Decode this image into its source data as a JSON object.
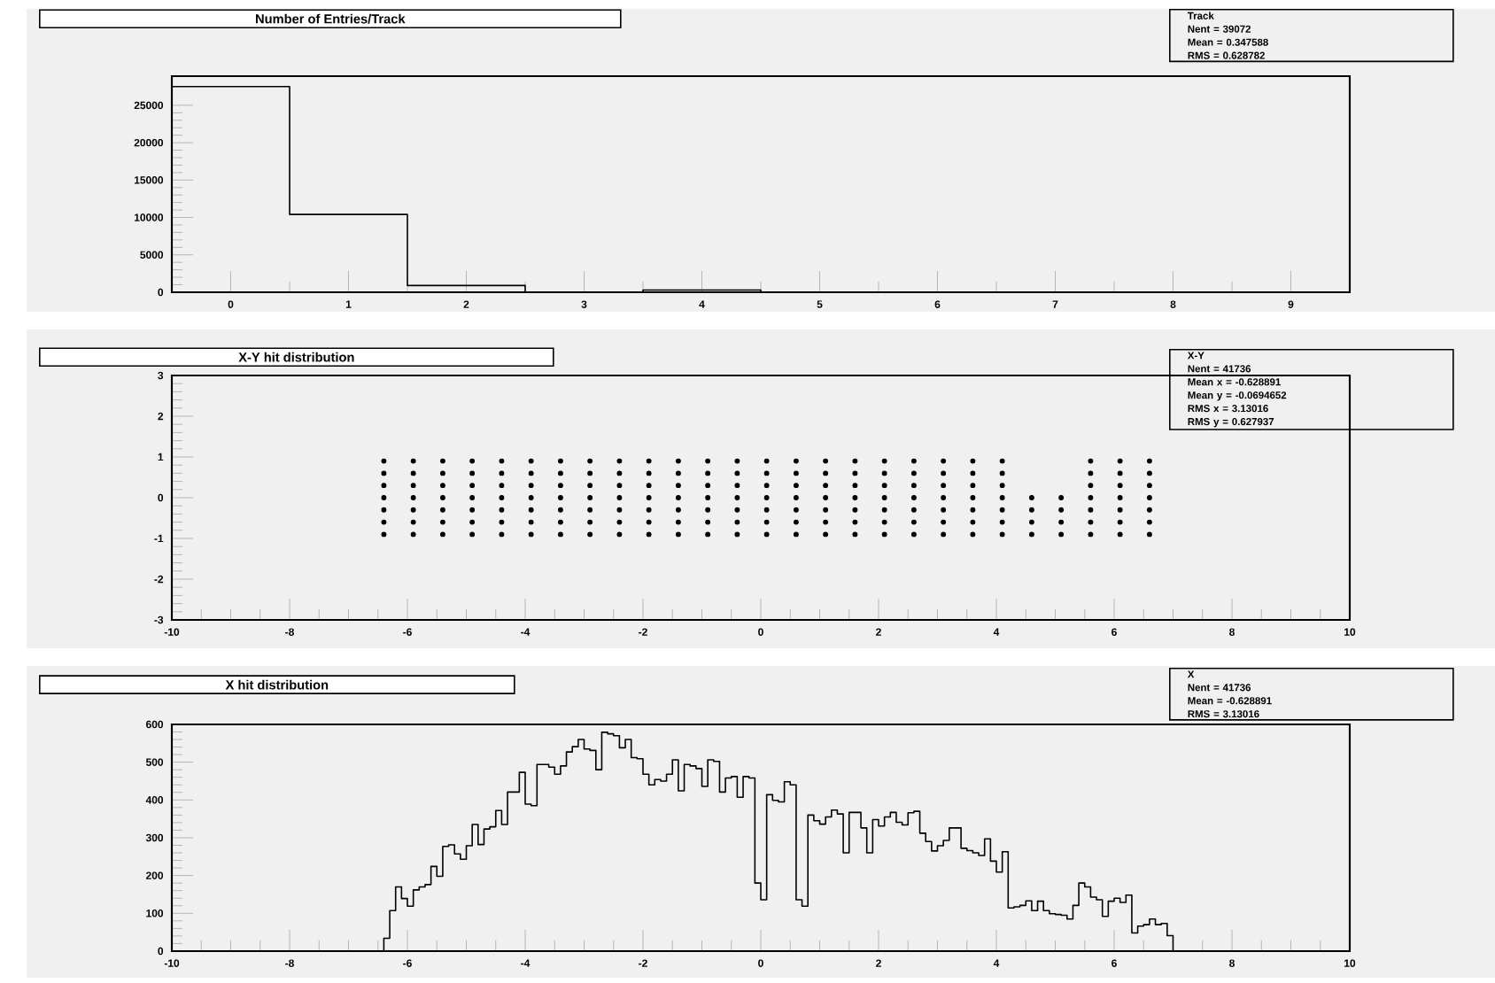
{
  "chart_data": [
    {
      "type": "histogram",
      "title": "Number of Entries/Track",
      "color": "#000000",
      "bins": [
        -0.5,
        0.5,
        1.5,
        2.5,
        3.5,
        4.5
      ],
      "values": [
        27500,
        10400,
        900,
        0,
        300
      ],
      "xlim": [
        -0.5,
        9.5
      ],
      "ylim": [
        0,
        28900
      ],
      "xticks": [
        0,
        1,
        2,
        3,
        4,
        5,
        6,
        7,
        8,
        9
      ],
      "yticks": [
        0,
        5000,
        10000,
        15000,
        20000,
        25000
      ],
      "annotations": [
        "Track",
        "Nent = 39072",
        "Mean  = 0.347588",
        "RMS   = 0.628782"
      ]
    },
    {
      "type": "scatter",
      "title": "X-Y hit distribution",
      "color": "#000000",
      "marker": "circle",
      "x": [
        -6.4,
        -6.4,
        -6.4,
        -6.4,
        -6.4,
        -6.4,
        -6.4,
        -5.9,
        -5.9,
        -5.9,
        -5.9,
        -5.9,
        -5.9,
        -5.9,
        -5.4,
        -5.4,
        -5.4,
        -5.4,
        -5.4,
        -5.4,
        -5.4,
        -4.9,
        -4.9,
        -4.9,
        -4.9,
        -4.9,
        -4.9,
        -4.9,
        -4.4,
        -4.4,
        -4.4,
        -4.4,
        -4.4,
        -4.4,
        -4.4,
        -3.9,
        -3.9,
        -3.9,
        -3.9,
        -3.9,
        -3.9,
        -3.9,
        -3.4,
        -3.4,
        -3.4,
        -3.4,
        -3.4,
        -3.4,
        -3.4,
        -2.9,
        -2.9,
        -2.9,
        -2.9,
        -2.9,
        -2.9,
        -2.9,
        -2.4,
        -2.4,
        -2.4,
        -2.4,
        -2.4,
        -2.4,
        -2.4,
        -1.9,
        -1.9,
        -1.9,
        -1.9,
        -1.9,
        -1.9,
        -1.9,
        -1.4,
        -1.4,
        -1.4,
        -1.4,
        -1.4,
        -1.4,
        -1.4,
        -0.9,
        -0.9,
        -0.9,
        -0.9,
        -0.9,
        -0.9,
        -0.9,
        -0.4,
        -0.4,
        -0.4,
        -0.4,
        -0.4,
        -0.4,
        -0.4,
        0.1,
        0.1,
        0.1,
        0.1,
        0.1,
        0.1,
        0.1,
        0.6,
        0.6,
        0.6,
        0.6,
        0.6,
        0.6,
        0.6,
        1.1,
        1.1,
        1.1,
        1.1,
        1.1,
        1.1,
        1.1,
        1.6,
        1.6,
        1.6,
        1.6,
        1.6,
        1.6,
        1.6,
        2.1,
        2.1,
        2.1,
        2.1,
        2.1,
        2.1,
        2.1,
        2.6,
        2.6,
        2.6,
        2.6,
        2.6,
        2.6,
        2.6,
        3.1,
        3.1,
        3.1,
        3.1,
        3.1,
        3.1,
        3.1,
        3.6,
        3.6,
        3.6,
        3.6,
        3.6,
        3.6,
        3.6,
        4.1,
        4.1,
        4.1,
        4.1,
        4.1,
        4.1,
        4.1,
        4.6,
        4.6,
        4.6,
        4.6,
        5.1,
        5.1,
        5.1,
        5.1,
        5.6,
        5.6,
        5.6,
        5.6,
        5.6,
        5.6,
        5.6,
        6.1,
        6.1,
        6.1,
        6.1,
        6.1,
        6.1,
        6.1,
        6.6,
        6.6,
        6.6,
        6.6,
        6.6,
        6.6,
        6.6
      ],
      "values": [
        -0.9,
        -0.6,
        -0.3,
        0,
        0.3,
        0.6,
        0.9,
        -0.9,
        -0.6,
        -0.3,
        0,
        0.3,
        0.6,
        0.9,
        -0.9,
        -0.6,
        -0.3,
        0,
        0.3,
        0.6,
        0.9,
        -0.9,
        -0.6,
        -0.3,
        0,
        0.3,
        0.6,
        0.9,
        -0.9,
        -0.6,
        -0.3,
        0,
        0.3,
        0.6,
        0.9,
        -0.9,
        -0.6,
        -0.3,
        0,
        0.3,
        0.6,
        0.9,
        -0.9,
        -0.6,
        -0.3,
        0,
        0.3,
        0.6,
        0.9,
        -0.9,
        -0.6,
        -0.3,
        0,
        0.3,
        0.6,
        0.9,
        -0.9,
        -0.6,
        -0.3,
        0,
        0.3,
        0.6,
        0.9,
        -0.9,
        -0.6,
        -0.3,
        0,
        0.3,
        0.6,
        0.9,
        -0.9,
        -0.6,
        -0.3,
        0,
        0.3,
        0.6,
        0.9,
        -0.9,
        -0.6,
        -0.3,
        0,
        0.3,
        0.6,
        0.9,
        -0.9,
        -0.6,
        -0.3,
        0,
        0.3,
        0.6,
        0.9,
        -0.9,
        -0.6,
        -0.3,
        0,
        0.3,
        0.6,
        0.9,
        -0.9,
        -0.6,
        -0.3,
        0,
        0.3,
        0.6,
        0.9,
        -0.9,
        -0.6,
        -0.3,
        0,
        0.3,
        0.6,
        0.9,
        -0.9,
        -0.6,
        -0.3,
        0,
        0.3,
        0.6,
        0.9,
        -0.9,
        -0.6,
        -0.3,
        0,
        0.3,
        0.6,
        0.9,
        -0.9,
        -0.6,
        -0.3,
        0,
        0.3,
        0.6,
        0.9,
        -0.9,
        -0.6,
        -0.3,
        0,
        0.3,
        0.6,
        0.9,
        -0.9,
        -0.6,
        -0.3,
        0,
        0.3,
        0.6,
        0.9,
        -0.9,
        -0.6,
        -0.3,
        0,
        0.3,
        0.6,
        0.9,
        -0.9,
        -0.6,
        -0.3,
        0,
        -0.9,
        -0.6,
        -0.3,
        0,
        -0.9,
        -0.6,
        -0.3,
        0,
        0.3,
        0.6,
        0.9,
        -0.9,
        -0.6,
        -0.3,
        0,
        0.3,
        0.6,
        0.9,
        -0.9,
        -0.6,
        -0.3,
        0,
        0.3,
        0.6,
        0.9
      ],
      "xlim": [
        -10,
        10
      ],
      "ylim": [
        -3,
        3
      ],
      "xticks": [
        -10,
        -8,
        -6,
        -4,
        -2,
        0,
        2,
        4,
        6,
        8,
        10
      ],
      "yticks": [
        -3,
        -2,
        -1,
        0,
        1,
        2,
        3
      ],
      "annotations": [
        "X-Y",
        "Nent = 41736",
        "Mean x = -0.628891",
        "Mean y = -0.0694652",
        "RMS x  = 3.13016",
        "RMS y  = 0.627937"
      ]
    },
    {
      "type": "histogram",
      "title": "X hit distribution",
      "color": "#000000",
      "bins": [
        -6.4,
        -6.3,
        -6.2,
        -6.1,
        -6.0,
        -5.9,
        -5.8,
        -5.7,
        -5.6,
        -5.5,
        -5.4,
        -5.3,
        -5.2,
        -5.1,
        -5.0,
        -4.9,
        -4.8,
        -4.7,
        -4.6,
        -4.5,
        -4.4,
        -4.3,
        -4.2,
        -4.1,
        -4.0,
        -3.9,
        -3.8,
        -3.7,
        -3.6,
        -3.5,
        -3.4,
        -3.3,
        -3.2,
        -3.1,
        -3.0,
        -2.9,
        -2.8,
        -2.7,
        -2.6,
        -2.5,
        -2.4,
        -2.3,
        -2.2,
        -2.1,
        -2.0,
        -1.9,
        -1.8,
        -1.7,
        -1.6,
        -1.5,
        -1.4,
        -1.3,
        -1.2,
        -1.1,
        -1.0,
        -0.9,
        -0.8,
        -0.7,
        -0.6,
        -0.5,
        -0.4,
        -0.3,
        -0.2,
        -0.1,
        0.0,
        0.1,
        0.2,
        0.3,
        0.4,
        0.5,
        0.6,
        0.7,
        0.8,
        0.9,
        1.0,
        1.1,
        1.2,
        1.3,
        1.4,
        1.5,
        1.6,
        1.7,
        1.8,
        1.9,
        2.0,
        2.1,
        2.2,
        2.3,
        2.4,
        2.5,
        2.6,
        2.7,
        2.8,
        2.9,
        3.0,
        3.1,
        3.2,
        3.3,
        3.4,
        3.5,
        3.6,
        3.7,
        3.8,
        3.9,
        4.0,
        4.1,
        4.2,
        4.3,
        4.4,
        4.5,
        4.6,
        4.7,
        4.8,
        4.9,
        5.0,
        5.1,
        5.2,
        5.3,
        5.4,
        5.5,
        5.6,
        5.7,
        5.8,
        5.9,
        6.0,
        6.1,
        6.2,
        6.3,
        6.4,
        6.5,
        6.6,
        6.7,
        6.8,
        6.9,
        7.0
      ],
      "values": [
        34,
        107,
        170,
        139,
        119,
        162,
        170,
        176,
        224,
        198,
        277,
        281,
        257,
        243,
        279,
        335,
        282,
        323,
        329,
        372,
        335,
        421,
        421,
        473,
        389,
        385,
        494,
        494,
        487,
        468,
        490,
        527,
        541,
        560,
        535,
        531,
        480,
        579,
        575,
        570,
        538,
        560,
        512,
        509,
        468,
        440,
        454,
        450,
        468,
        506,
        424,
        494,
        490,
        483,
        436,
        506,
        502,
        421,
        458,
        462,
        407,
        462,
        458,
        180,
        136,
        414,
        399,
        395,
        448,
        440,
        136,
        119,
        360,
        345,
        336,
        355,
        373,
        363,
        260,
        367,
        367,
        326,
        260,
        348,
        331,
        355,
        367,
        341,
        334,
        366,
        370,
        312,
        290,
        265,
        279,
        293,
        326,
        326,
        272,
        266,
        260,
        253,
        297,
        238,
        209,
        263,
        114,
        117,
        121,
        133,
        107,
        132,
        107,
        99,
        97,
        95,
        85,
        121,
        180,
        170,
        143,
        136,
        92,
        132,
        140,
        129,
        148,
        48,
        66,
        70,
        85,
        70,
        73,
        41
      ],
      "xlim": [
        -10,
        10
      ],
      "ylim": [
        0,
        600
      ],
      "xticks": [
        -10,
        -8,
        -6,
        -4,
        -2,
        0,
        2,
        4,
        6,
        8,
        10
      ],
      "yticks": [
        0,
        100,
        200,
        300,
        400,
        500,
        600
      ],
      "annotations": [
        "X",
        "Nent = 41736",
        "Mean  = -0.628891",
        "RMS   = 3.13016"
      ]
    }
  ]
}
